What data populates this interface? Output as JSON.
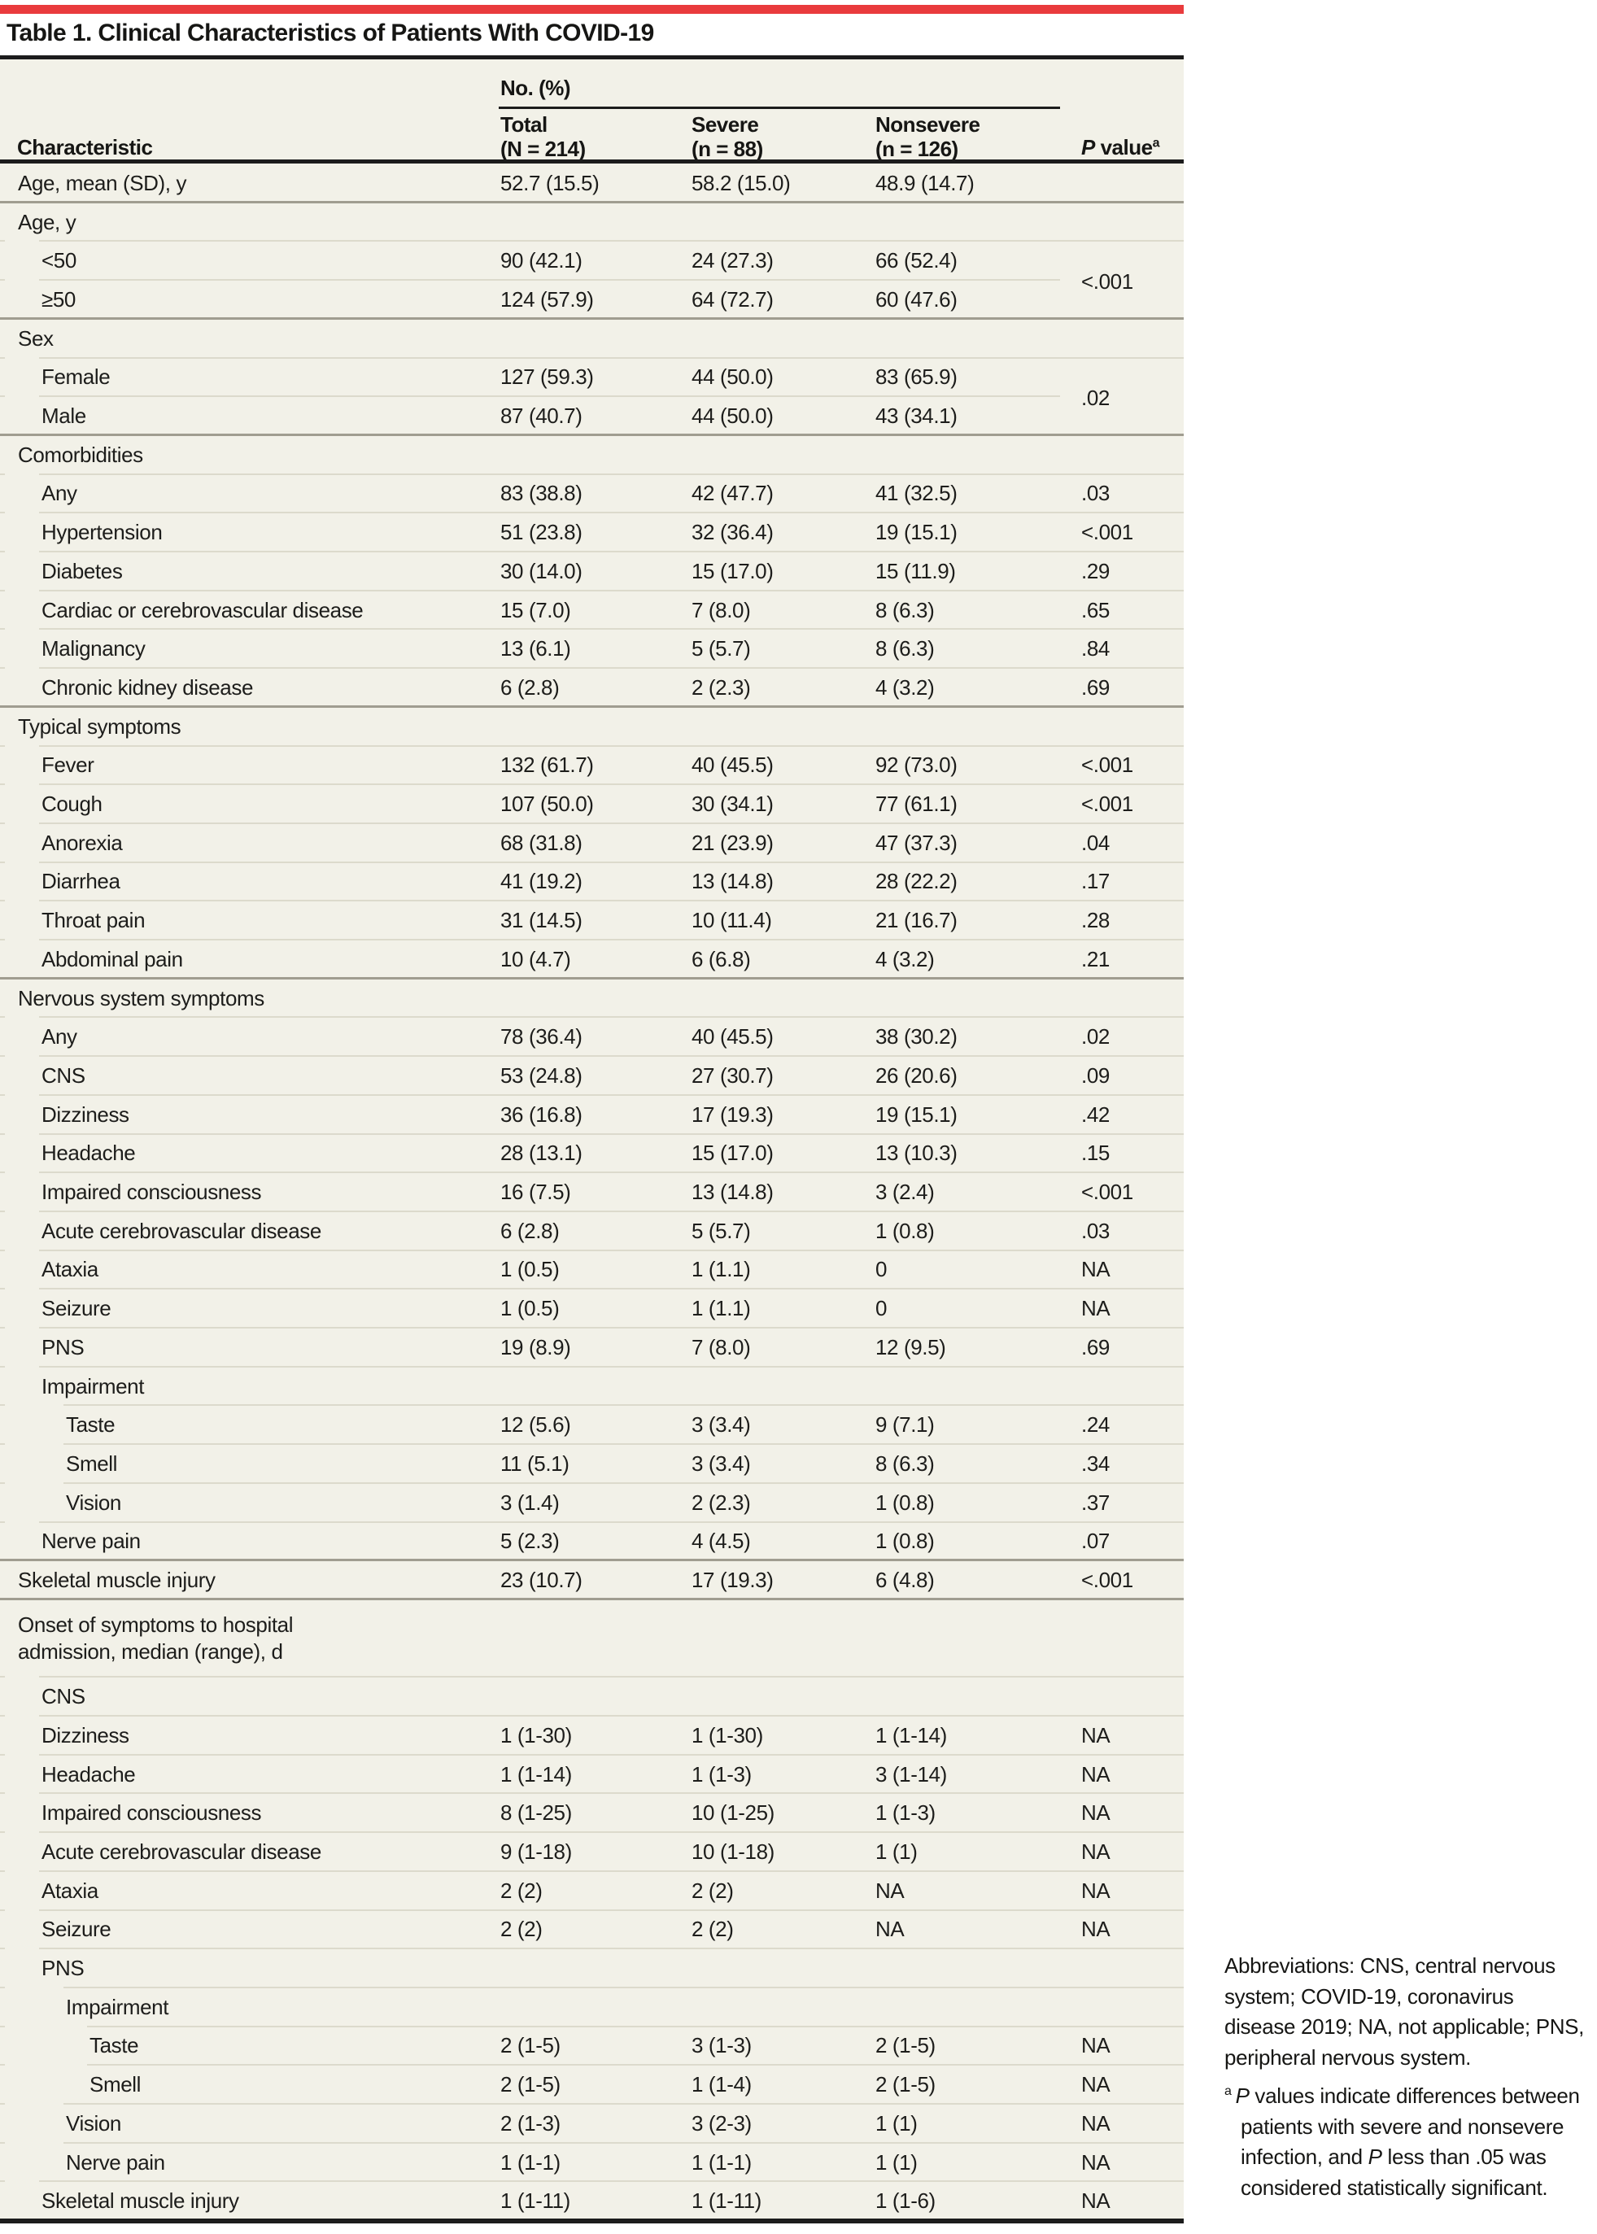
{
  "title": "Table 1. Clinical Characteristics of Patients With COVID-19",
  "header": {
    "group_label": "No. (%)",
    "characteristic": "Characteristic",
    "columns": [
      {
        "line1": "Total",
        "line2": "(N = 214)"
      },
      {
        "line1": "Severe",
        "line2": "(n = 88)"
      },
      {
        "line1": "Nonsevere",
        "line2": "(n = 126)"
      }
    ],
    "p_value": {
      "italic": "P",
      "rest": " value",
      "sup": "a"
    }
  },
  "rows": [
    {
      "label": "Age, mean (SD), y",
      "level": 0,
      "total": "52.7 (15.5)",
      "severe": "58.2 (15.0)",
      "nonsevere": "48.9 (14.7)"
    },
    {
      "label": "Age, y",
      "level": 0,
      "section": true
    },
    {
      "label": "<50",
      "level": 1,
      "total": "90 (42.1)",
      "severe": "24 (27.3)",
      "nonsevere": "66 (52.4)",
      "p": "<.001",
      "group": "start"
    },
    {
      "label": "≥50",
      "level": 1,
      "total": "124 (57.9)",
      "severe": "64 (72.7)",
      "nonsevere": "60 (47.6)",
      "group": "end"
    },
    {
      "label": "Sex",
      "level": 0,
      "section": true
    },
    {
      "label": "Female",
      "level": 1,
      "total": "127 (59.3)",
      "severe": "44 (50.0)",
      "nonsevere": "83 (65.9)",
      "p": ".02",
      "group": "start"
    },
    {
      "label": "Male",
      "level": 1,
      "total": "87 (40.7)",
      "severe": "44 (50.0)",
      "nonsevere": "43 (34.1)",
      "group": "end"
    },
    {
      "label": "Comorbidities",
      "level": 0,
      "section": true
    },
    {
      "label": "Any",
      "level": 1,
      "total": "83 (38.8)",
      "severe": "42 (47.7)",
      "nonsevere": "41 (32.5)",
      "p": ".03"
    },
    {
      "label": "Hypertension",
      "level": 1,
      "total": "51 (23.8)",
      "severe": "32 (36.4)",
      "nonsevere": "19 (15.1)",
      "p": "<.001"
    },
    {
      "label": "Diabetes",
      "level": 1,
      "total": "30 (14.0)",
      "severe": "15 (17.0)",
      "nonsevere": "15 (11.9)",
      "p": ".29"
    },
    {
      "label": "Cardiac or cerebrovascular disease",
      "level": 1,
      "total": "15 (7.0)",
      "severe": "7 (8.0)",
      "nonsevere": "8 (6.3)",
      "p": ".65"
    },
    {
      "label": "Malignancy",
      "level": 1,
      "total": "13 (6.1)",
      "severe": "5 (5.7)",
      "nonsevere": "8 (6.3)",
      "p": ".84"
    },
    {
      "label": "Chronic kidney disease",
      "level": 1,
      "total": "6 (2.8)",
      "severe": "2 (2.3)",
      "nonsevere": "4 (3.2)",
      "p": ".69"
    },
    {
      "label": "Typical symptoms",
      "level": 0,
      "section": true
    },
    {
      "label": "Fever",
      "level": 1,
      "total": "132 (61.7)",
      "severe": "40 (45.5)",
      "nonsevere": "92 (73.0)",
      "p": "<.001"
    },
    {
      "label": "Cough",
      "level": 1,
      "total": "107 (50.0)",
      "severe": "30 (34.1)",
      "nonsevere": "77 (61.1)",
      "p": "<.001"
    },
    {
      "label": "Anorexia",
      "level": 1,
      "total": "68 (31.8)",
      "severe": "21 (23.9)",
      "nonsevere": "47 (37.3)",
      "p": ".04"
    },
    {
      "label": "Diarrhea",
      "level": 1,
      "total": "41 (19.2)",
      "severe": "13 (14.8)",
      "nonsevere": "28 (22.2)",
      "p": ".17"
    },
    {
      "label": "Throat pain",
      "level": 1,
      "total": "31 (14.5)",
      "severe": "10 (11.4)",
      "nonsevere": "21 (16.7)",
      "p": ".28"
    },
    {
      "label": "Abdominal pain",
      "level": 1,
      "total": "10 (4.7)",
      "severe": "6 (6.8)",
      "nonsevere": "4 (3.2)",
      "p": ".21"
    },
    {
      "label": "Nervous system symptoms",
      "level": 0,
      "section": true
    },
    {
      "label": "Any",
      "level": 1,
      "total": "78 (36.4)",
      "severe": "40 (45.5)",
      "nonsevere": "38 (30.2)",
      "p": ".02"
    },
    {
      "label": "CNS",
      "level": 1,
      "total": "53 (24.8)",
      "severe": "27 (30.7)",
      "nonsevere": "26 (20.6)",
      "p": ".09"
    },
    {
      "label": "Dizziness",
      "level": 1,
      "total": "36 (16.8)",
      "severe": "17 (19.3)",
      "nonsevere": "19 (15.1)",
      "p": ".42"
    },
    {
      "label": "Headache",
      "level": 1,
      "total": "28 (13.1)",
      "severe": "15 (17.0)",
      "nonsevere": "13 (10.3)",
      "p": ".15"
    },
    {
      "label": "Impaired consciousness",
      "level": 1,
      "total": "16 (7.5)",
      "severe": "13 (14.8)",
      "nonsevere": "3 (2.4)",
      "p": "<.001"
    },
    {
      "label": "Acute cerebrovascular disease",
      "level": 1,
      "total": "6 (2.8)",
      "severe": "5 (5.7)",
      "nonsevere": "1 (0.8)",
      "p": ".03"
    },
    {
      "label": "Ataxia",
      "level": 1,
      "total": "1 (0.5)",
      "severe": "1 (1.1)",
      "nonsevere": "0",
      "p": "NA"
    },
    {
      "label": "Seizure",
      "level": 1,
      "total": "1 (0.5)",
      "severe": "1 (1.1)",
      "nonsevere": "0",
      "p": "NA"
    },
    {
      "label": "PNS",
      "level": 1,
      "total": "19 (8.9)",
      "severe": "7 (8.0)",
      "nonsevere": "12 (9.5)",
      "p": ".69"
    },
    {
      "label": "Impairment",
      "level": 1,
      "section": true
    },
    {
      "label": "Taste",
      "level": 2,
      "total": "12 (5.6)",
      "severe": "3 (3.4)",
      "nonsevere": "9 (7.1)",
      "p": ".24"
    },
    {
      "label": "Smell",
      "level": 2,
      "total": "11 (5.1)",
      "severe": "3 (3.4)",
      "nonsevere": "8 (6.3)",
      "p": ".34"
    },
    {
      "label": "Vision",
      "level": 2,
      "total": "3 (1.4)",
      "severe": "2 (2.3)",
      "nonsevere": "1 (0.8)",
      "p": ".37"
    },
    {
      "label": "Nerve pain",
      "level": 1,
      "total": "5 (2.3)",
      "severe": "4 (4.5)",
      "nonsevere": "1 (0.8)",
      "p": ".07"
    },
    {
      "label": "Skeletal muscle injury",
      "level": 0,
      "total": "23 (10.7)",
      "severe": "17 (19.3)",
      "nonsevere": "6 (4.8)",
      "p": "<.001"
    },
    {
      "label": "Onset of symptoms to hospital admission, median (range), d",
      "level": 0,
      "section": true,
      "tall": true
    },
    {
      "label": "CNS",
      "level": 1,
      "section": true
    },
    {
      "label": "Dizziness",
      "level": 1,
      "total": "1 (1-30)",
      "severe": "1 (1-30)",
      "nonsevere": "1 (1-14)",
      "p": "NA"
    },
    {
      "label": "Headache",
      "level": 1,
      "total": "1 (1-14)",
      "severe": "1 (1-3)",
      "nonsevere": "3 (1-14)",
      "p": "NA"
    },
    {
      "label": "Impaired consciousness",
      "level": 1,
      "total": "8 (1-25)",
      "severe": "10 (1-25)",
      "nonsevere": "1 (1-3)",
      "p": "NA"
    },
    {
      "label": "Acute cerebrovascular disease",
      "level": 1,
      "total": "9 (1-18)",
      "severe": "10 (1-18)",
      "nonsevere": "1 (1)",
      "p": "NA"
    },
    {
      "label": "Ataxia",
      "level": 1,
      "total": "2 (2)",
      "severe": "2 (2)",
      "nonsevere": "NA",
      "p": "NA"
    },
    {
      "label": "Seizure",
      "level": 1,
      "total": "2 (2)",
      "severe": "2 (2)",
      "nonsevere": "NA",
      "p": "NA"
    },
    {
      "label": "PNS",
      "level": 1,
      "section": true
    },
    {
      "label": "Impairment",
      "level": 2,
      "section": true
    },
    {
      "label": "Taste",
      "level": 3,
      "total": "2 (1-5)",
      "severe": "3 (1-3)",
      "nonsevere": "2 (1-5)",
      "p": "NA"
    },
    {
      "label": "Smell",
      "level": 3,
      "total": "2 (1-5)",
      "severe": "1 (1-4)",
      "nonsevere": "2 (1-5)",
      "p": "NA"
    },
    {
      "label": "Vision",
      "level": 2,
      "total": "2 (1-3)",
      "severe": "3 (2-3)",
      "nonsevere": "1 (1)",
      "p": "NA"
    },
    {
      "label": "Nerve pain",
      "level": 2,
      "total": "1 (1-1)",
      "severe": "1 (1-1)",
      "nonsevere": "1 (1)",
      "p": "NA"
    },
    {
      "label": "Skeletal muscle injury",
      "level": 1,
      "total": "1 (1-11)",
      "severe": "1 (1-11)",
      "nonsevere": "1 (1-6)",
      "p": "NA"
    }
  ],
  "footnotes": {
    "abbreviations": "Abbreviations: CNS, central nervous system; COVID-19, coronavirus disease 2019; NA, not applicable; PNS, peripheral nervous system.",
    "note_a": {
      "marker": "a",
      "p1": "P",
      "t1": " values indicate differences between patients with severe and nonsevere infection, and ",
      "p2": "P",
      "t2": " less than .05 was considered statistically significant."
    }
  },
  "colors": {
    "accent_red": "#e93b3d",
    "table_background": "#f2f1e8",
    "rule_dark": "#1c1c1c",
    "separator_light": "#dcdacc",
    "separator_section": "#a09d90",
    "text": "#1d1d1b"
  }
}
